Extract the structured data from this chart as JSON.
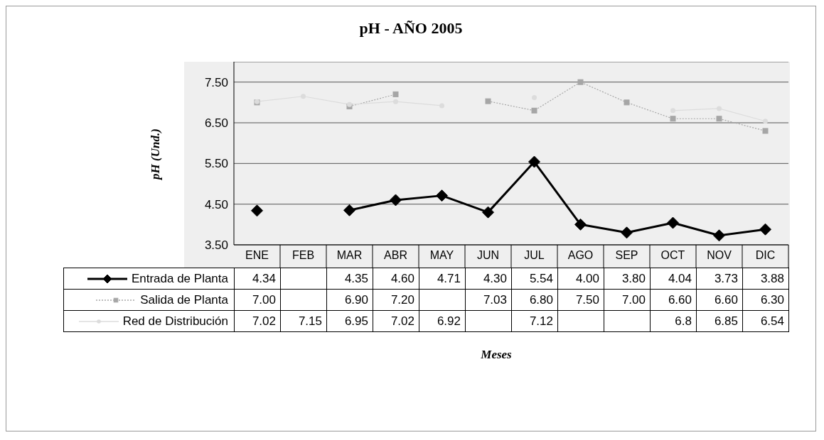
{
  "chart_data": {
    "type": "line",
    "title": "pH - AÑO 2005",
    "annotations": [
      "Meses"
    ],
    "ylabel": "pH (Und.)",
    "categories": [
      "ENE",
      "FEB",
      "MAR",
      "ABR",
      "MAY",
      "JUN",
      "JUL",
      "AGO",
      "SEP",
      "OCT",
      "NOV",
      "DIC"
    ],
    "series": [
      {
        "name": "Entrada de Planta",
        "color": "#000000",
        "marker": "diamond",
        "line_style": "solid",
        "values": [
          4.34,
          null,
          4.35,
          4.6,
          4.71,
          4.3,
          5.54,
          4.0,
          3.8,
          4.04,
          3.73,
          3.88
        ],
        "value_labels": [
          "4.34",
          null,
          "4.35",
          "4.60",
          "4.71",
          "4.30",
          "5.54",
          "4.00",
          "3.80",
          "4.04",
          "3.73",
          "3.88"
        ]
      },
      {
        "name": "Salida de Planta",
        "color": "#a6a6a6",
        "marker": "square",
        "line_style": "dotted",
        "values": [
          7.0,
          null,
          6.9,
          7.2,
          null,
          7.03,
          6.8,
          7.5,
          7.0,
          6.6,
          6.6,
          6.3
        ],
        "value_labels": [
          "7.00",
          null,
          "6.90",
          "7.20",
          null,
          "7.03",
          "6.80",
          "7.50",
          "7.00",
          "6.60",
          "6.60",
          "6.30"
        ]
      },
      {
        "name": "Red de Distribución",
        "color": "#dcdcdc",
        "marker": "circle",
        "line_style": "solid",
        "values": [
          7.02,
          7.15,
          6.95,
          7.02,
          6.92,
          null,
          7.12,
          null,
          null,
          6.8,
          6.85,
          6.54
        ],
        "value_labels": [
          "7.02",
          "7.15",
          "6.95",
          "7.02",
          "6.92",
          null,
          "7.12",
          null,
          null,
          "6.8",
          "6.85",
          "6.54"
        ]
      }
    ],
    "ylim": [
      3.5,
      8
    ],
    "yticks": [
      {
        "value": 3.5,
        "label": "3.50"
      },
      {
        "value": 4.5,
        "label": "4.50"
      },
      {
        "value": 5.5,
        "label": "5.50"
      },
      {
        "value": 6.5,
        "label": "6.50"
      },
      {
        "value": 7.5,
        "label": "7.50"
      }
    ],
    "grid": "y",
    "legend": "bottom"
  }
}
